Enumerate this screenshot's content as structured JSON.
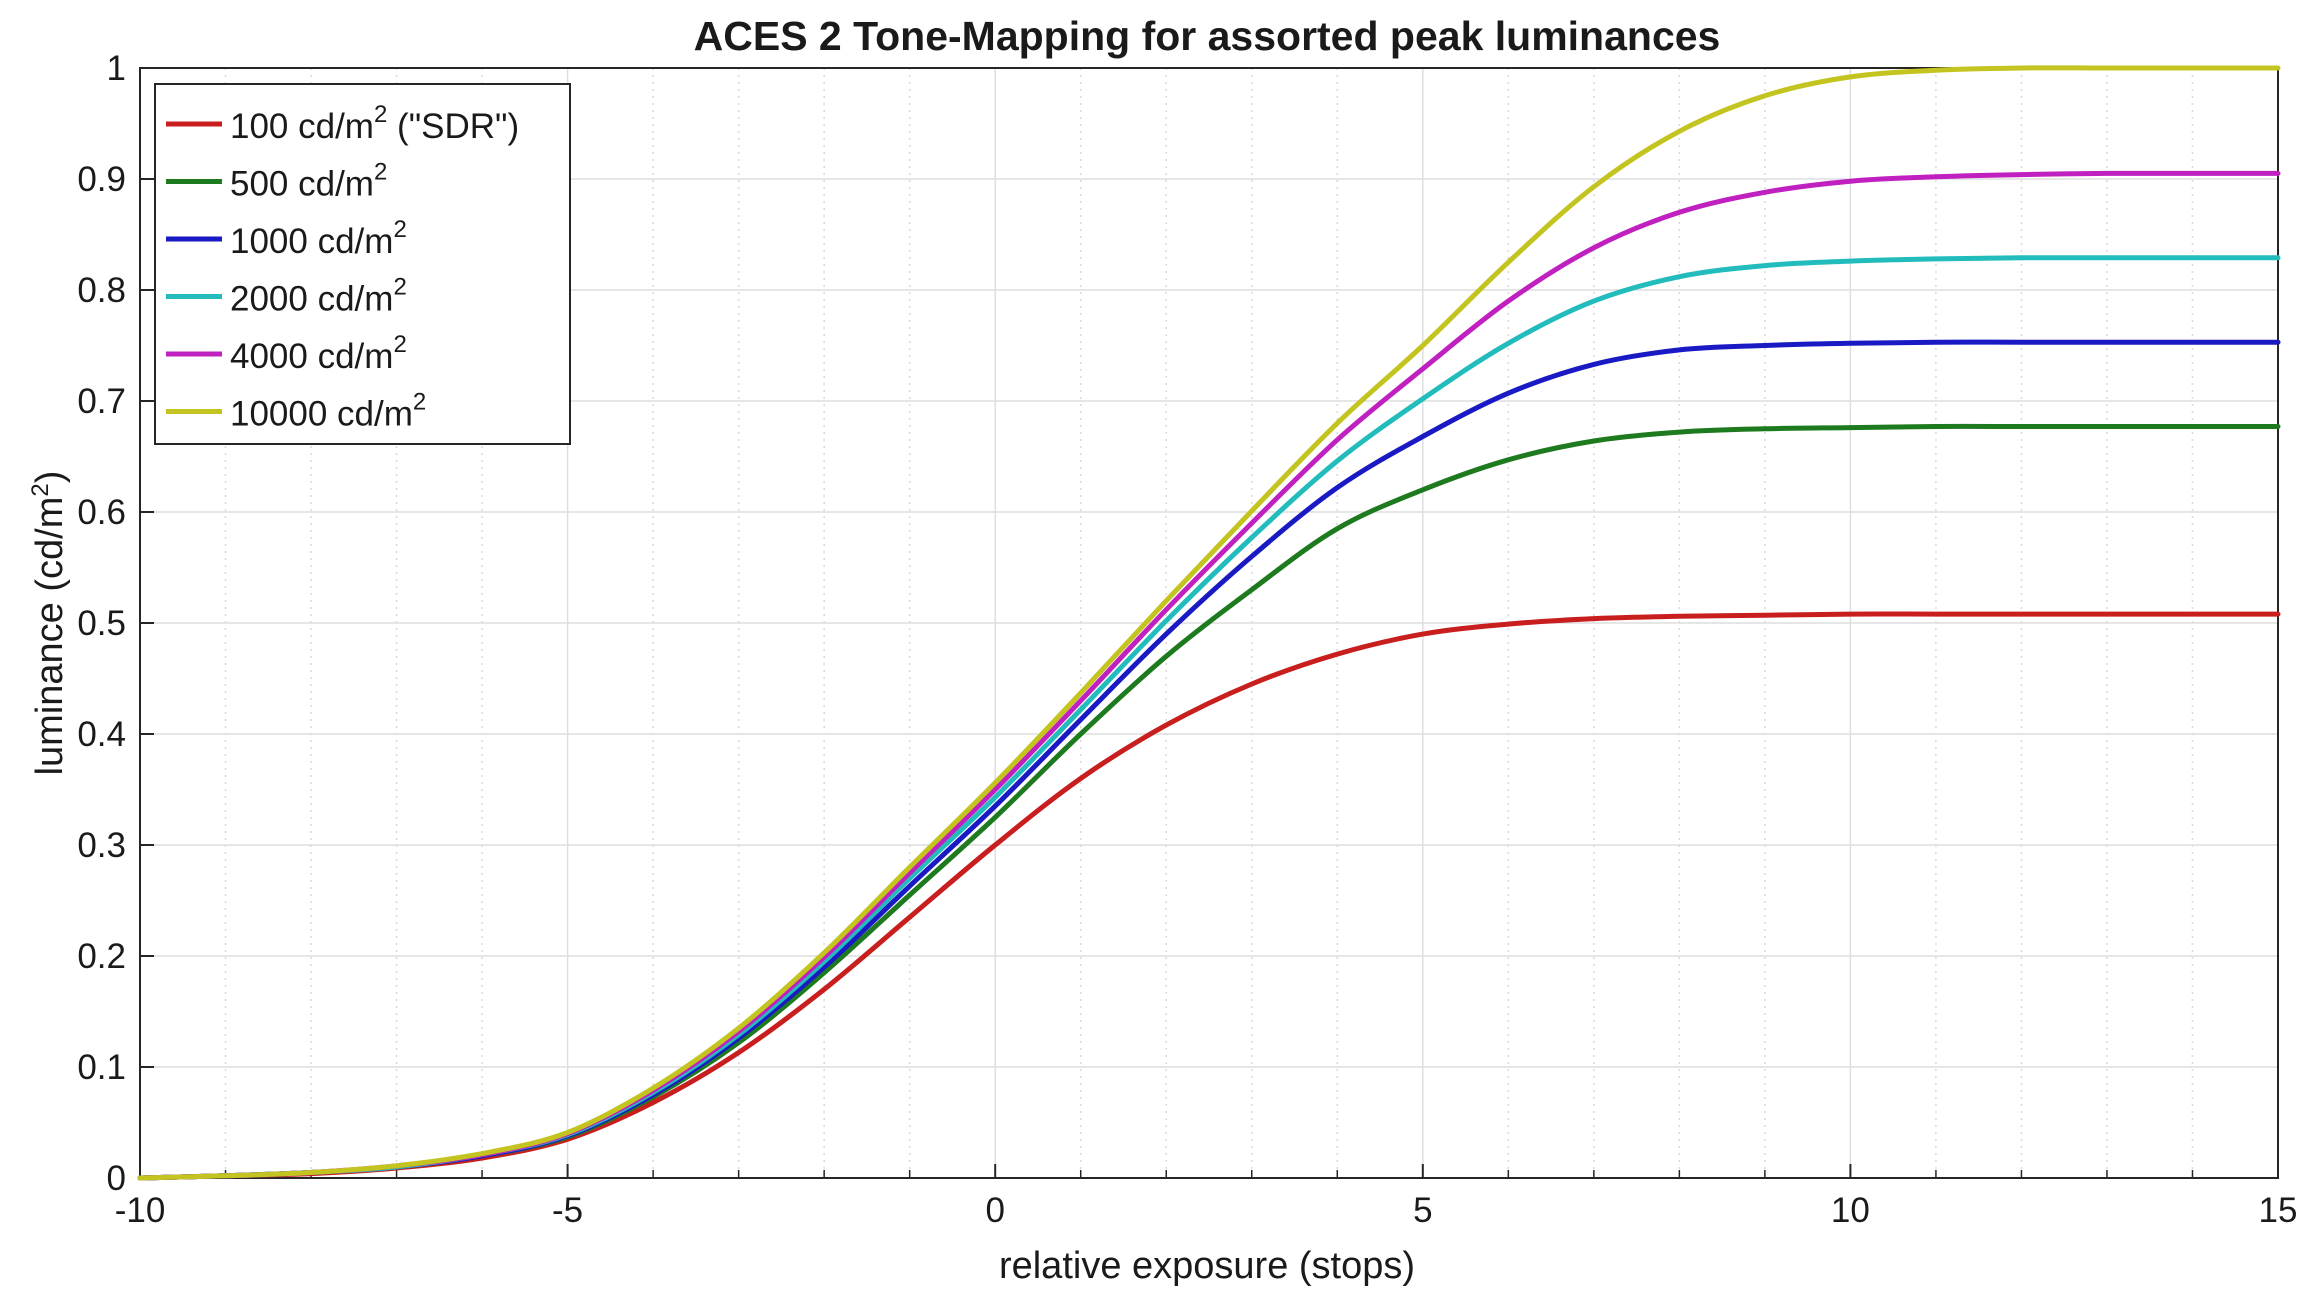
{
  "chart_data": {
    "type": "line",
    "title": "ACES 2 Tone-Mapping for assorted peak luminances",
    "xlabel": "relative exposure (stops)",
    "ylabel": "luminance (cd/m",
    "ylabel_sup": "2",
    "ylabel_close": ")",
    "xlim": [
      -10,
      15
    ],
    "ylim": [
      0,
      1
    ],
    "xticks": [
      -10,
      -5,
      0,
      5,
      10,
      15
    ],
    "yticks": [
      0,
      0.1,
      0.2,
      0.3,
      0.4,
      0.5,
      0.6,
      0.7,
      0.8,
      0.9,
      1
    ],
    "xtick_labels": [
      "-10",
      "-5",
      "0",
      "5",
      "10",
      "15"
    ],
    "ytick_labels": [
      "0",
      "0.1",
      "0.2",
      "0.3",
      "0.4",
      "0.5",
      "0.6",
      "0.7",
      "0.8",
      "0.9",
      "1"
    ],
    "grid": true,
    "minor_grid_x": true,
    "legend_position": "top-left",
    "x": [
      -10,
      -9,
      -8,
      -7,
      -6,
      -5,
      -4,
      -3,
      -2,
      -1,
      0,
      1,
      2,
      3,
      4,
      5,
      6,
      7,
      8,
      9,
      10,
      11,
      12,
      13,
      14,
      15
    ],
    "series": [
      {
        "name": "100 cd/m",
        "sup": "2",
        "suffix": " (\"SDR\")",
        "color": "#c81e1e",
        "values": [
          0.0,
          0.002,
          0.004,
          0.009,
          0.018,
          0.035,
          0.068,
          0.113,
          0.17,
          0.235,
          0.3,
          0.36,
          0.408,
          0.445,
          0.472,
          0.49,
          0.499,
          0.504,
          0.506,
          0.507,
          0.508,
          0.508,
          0.508,
          0.508,
          0.508,
          0.508
        ]
      },
      {
        "name": "500 cd/m",
        "sup": "2",
        "suffix": "",
        "color": "#1e7a1e",
        "values": [
          0.0,
          0.002,
          0.005,
          0.01,
          0.02,
          0.037,
          0.073,
          0.122,
          0.185,
          0.255,
          0.325,
          0.4,
          0.47,
          0.53,
          0.585,
          0.62,
          0.647,
          0.664,
          0.672,
          0.675,
          0.676,
          0.677,
          0.677,
          0.677,
          0.677,
          0.677
        ]
      },
      {
        "name": "1000 cd/m",
        "sup": "2",
        "suffix": "",
        "color": "#1a1ac4",
        "values": [
          0.0,
          0.002,
          0.005,
          0.01,
          0.02,
          0.038,
          0.075,
          0.126,
          0.19,
          0.263,
          0.335,
          0.413,
          0.49,
          0.56,
          0.622,
          0.668,
          0.707,
          0.733,
          0.746,
          0.75,
          0.752,
          0.753,
          0.753,
          0.753,
          0.753,
          0.753
        ]
      },
      {
        "name": "2000 cd/m",
        "sup": "2",
        "suffix": "",
        "color": "#22bcbc",
        "values": [
          0.0,
          0.002,
          0.005,
          0.01,
          0.021,
          0.039,
          0.077,
          0.129,
          0.195,
          0.27,
          0.343,
          0.422,
          0.502,
          0.577,
          0.646,
          0.702,
          0.752,
          0.79,
          0.812,
          0.822,
          0.826,
          0.828,
          0.829,
          0.829,
          0.829,
          0.829
        ]
      },
      {
        "name": "4000 cd/m",
        "sup": "2",
        "suffix": "",
        "color": "#c020c0",
        "values": [
          0.0,
          0.002,
          0.005,
          0.011,
          0.021,
          0.04,
          0.079,
          0.132,
          0.199,
          0.275,
          0.35,
          0.43,
          0.512,
          0.59,
          0.665,
          0.729,
          0.79,
          0.838,
          0.87,
          0.888,
          0.898,
          0.902,
          0.904,
          0.905,
          0.905,
          0.905
        ]
      },
      {
        "name": "10000 cd/m",
        "sup": "2",
        "suffix": "",
        "color": "#c4c420",
        "values": [
          0.0,
          0.002,
          0.005,
          0.011,
          0.022,
          0.041,
          0.081,
          0.135,
          0.203,
          0.28,
          0.356,
          0.437,
          0.52,
          0.601,
          0.68,
          0.75,
          0.825,
          0.893,
          0.943,
          0.975,
          0.992,
          0.998,
          1.0,
          1.0,
          1.0,
          1.0
        ]
      }
    ]
  }
}
